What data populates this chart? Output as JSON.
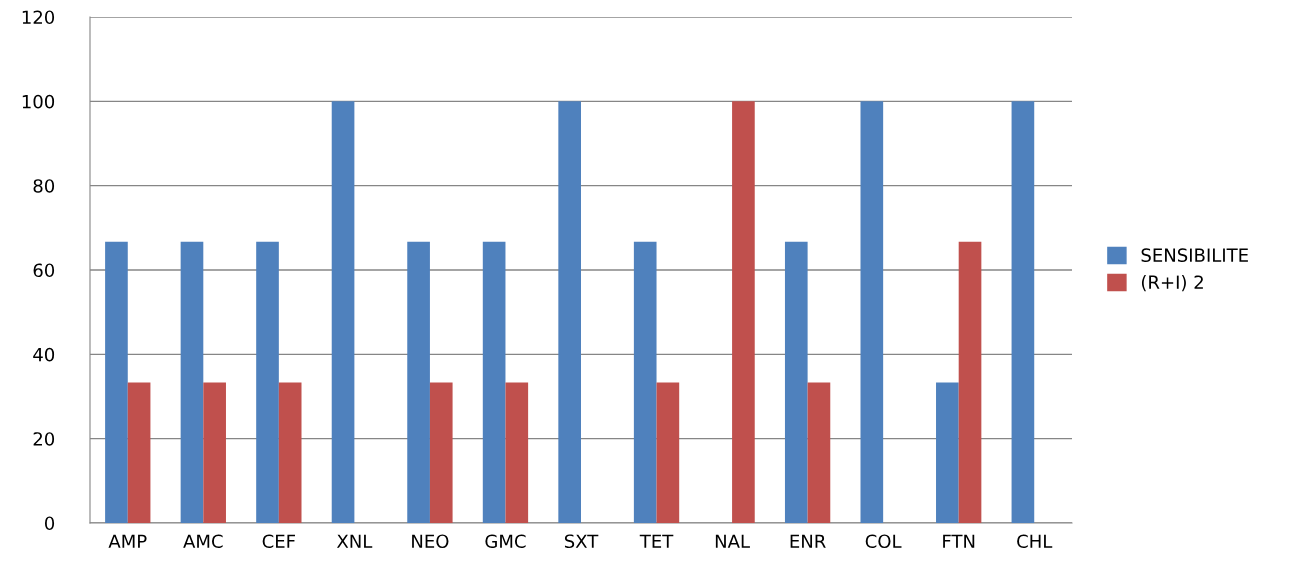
{
  "chart_data": {
    "type": "bar",
    "categories": [
      "AMP",
      "AMC",
      "CEF",
      "XNL",
      "NEO",
      "GMC",
      "SXT",
      "TET",
      "NAL",
      "ENR",
      "COL",
      "FTN",
      "CHL"
    ],
    "series": [
      {
        "name": "SENSIBILITE",
        "color": "#4f81bd",
        "values": [
          66.7,
          66.7,
          66.7,
          100,
          66.7,
          66.7,
          100,
          66.7,
          0,
          66.7,
          100,
          33.3,
          100
        ]
      },
      {
        "name": "(R+I) 2",
        "color": "#c0504d",
        "values": [
          33.3,
          33.3,
          33.3,
          0,
          33.3,
          33.3,
          0,
          33.3,
          100,
          33.3,
          0,
          66.7,
          0
        ]
      }
    ],
    "ylim": [
      0,
      120
    ],
    "yticks": [
      0,
      20,
      40,
      60,
      80,
      100,
      120
    ],
    "grid": "y",
    "legend": "right"
  }
}
